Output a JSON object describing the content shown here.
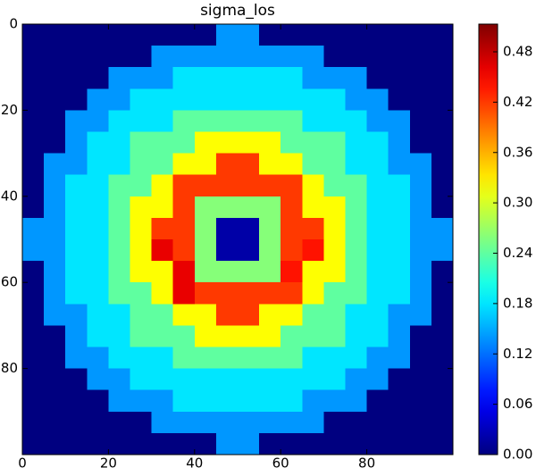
{
  "chart_data": {
    "type": "heatmap",
    "title": "sigma_los",
    "xlim": [
      0,
      100
    ],
    "ylim": [
      100,
      0
    ],
    "xticks": [
      0,
      20,
      40,
      60,
      80
    ],
    "yticks": [
      0,
      20,
      40,
      60,
      80
    ],
    "clim": [
      0,
      0.513
    ],
    "cticks": [
      {
        "value": 0,
        "label": "0.00"
      },
      {
        "value": 0.06,
        "label": "0.06"
      },
      {
        "value": 0.12,
        "label": "0.12"
      },
      {
        "value": 0.18,
        "label": "0.18"
      },
      {
        "value": 0.24,
        "label": "0.24"
      },
      {
        "value": 0.3,
        "label": "0.30"
      },
      {
        "value": 0.36,
        "label": "0.36"
      },
      {
        "value": 0.42,
        "label": "0.42"
      },
      {
        "value": 0.48,
        "label": "0.48"
      }
    ],
    "colormap": "jet",
    "z": [
      [
        0,
        0,
        0,
        0,
        0,
        0,
        0,
        0,
        0,
        0.14,
        0.14,
        0,
        0,
        0,
        0,
        0,
        0,
        0,
        0,
        0
      ],
      [
        0,
        0,
        0,
        0,
        0,
        0,
        0.14,
        0.14,
        0.14,
        0.14,
        0.14,
        0.14,
        0.14,
        0.14,
        0,
        0,
        0,
        0,
        0,
        0
      ],
      [
        0,
        0,
        0,
        0,
        0.14,
        0.14,
        0.14,
        0.18,
        0.18,
        0.18,
        0.18,
        0.18,
        0.18,
        0.14,
        0.14,
        0.14,
        0,
        0,
        0,
        0
      ],
      [
        0,
        0,
        0,
        0.14,
        0.14,
        0.18,
        0.18,
        0.18,
        0.18,
        0.18,
        0.18,
        0.18,
        0.18,
        0.18,
        0.18,
        0.14,
        0.14,
        0,
        0,
        0
      ],
      [
        0,
        0,
        0.14,
        0.14,
        0.18,
        0.18,
        0.18,
        0.24,
        0.24,
        0.24,
        0.24,
        0.24,
        0.24,
        0.18,
        0.18,
        0.18,
        0.14,
        0.14,
        0,
        0
      ],
      [
        0,
        0,
        0.14,
        0.18,
        0.18,
        0.24,
        0.24,
        0.24,
        0.32,
        0.32,
        0.32,
        0.32,
        0.24,
        0.24,
        0.24,
        0.18,
        0.18,
        0.14,
        0,
        0
      ],
      [
        0,
        0.14,
        0.14,
        0.18,
        0.18,
        0.24,
        0.24,
        0.32,
        0.32,
        0.42,
        0.42,
        0.32,
        0.32,
        0.24,
        0.24,
        0.18,
        0.18,
        0.14,
        0.14,
        0
      ],
      [
        0,
        0.14,
        0.18,
        0.18,
        0.24,
        0.24,
        0.32,
        0.42,
        0.42,
        0.42,
        0.42,
        0.42,
        0.42,
        0.32,
        0.24,
        0.24,
        0.18,
        0.18,
        0.14,
        0
      ],
      [
        0,
        0.14,
        0.18,
        0.18,
        0.24,
        0.32,
        0.32,
        0.42,
        0.26,
        0.26,
        0.26,
        0.26,
        0.42,
        0.32,
        0.32,
        0.24,
        0.18,
        0.18,
        0.14,
        0
      ],
      [
        0.14,
        0.14,
        0.18,
        0.18,
        0.24,
        0.32,
        0.42,
        0.42,
        0.26,
        0.02,
        0.02,
        0.26,
        0.42,
        0.42,
        0.32,
        0.24,
        0.18,
        0.18,
        0.14,
        0.14
      ],
      [
        0.14,
        0.14,
        0.18,
        0.18,
        0.24,
        0.32,
        0.46,
        0.42,
        0.26,
        0.02,
        0.02,
        0.26,
        0.42,
        0.44,
        0.32,
        0.24,
        0.18,
        0.18,
        0.14,
        0.14
      ],
      [
        0,
        0.14,
        0.18,
        0.18,
        0.24,
        0.32,
        0.32,
        0.46,
        0.26,
        0.26,
        0.26,
        0.26,
        0.44,
        0.32,
        0.32,
        0.24,
        0.18,
        0.18,
        0.14,
        0
      ],
      [
        0,
        0.14,
        0.18,
        0.18,
        0.24,
        0.24,
        0.32,
        0.46,
        0.42,
        0.42,
        0.42,
        0.42,
        0.42,
        0.32,
        0.24,
        0.24,
        0.18,
        0.18,
        0.14,
        0
      ],
      [
        0,
        0.14,
        0.14,
        0.18,
        0.18,
        0.24,
        0.24,
        0.32,
        0.32,
        0.42,
        0.42,
        0.32,
        0.32,
        0.24,
        0.24,
        0.18,
        0.18,
        0.14,
        0.14,
        0
      ],
      [
        0,
        0,
        0.14,
        0.18,
        0.18,
        0.24,
        0.24,
        0.24,
        0.32,
        0.32,
        0.32,
        0.32,
        0.24,
        0.24,
        0.24,
        0.18,
        0.18,
        0.14,
        0,
        0
      ],
      [
        0,
        0,
        0.14,
        0.14,
        0.18,
        0.18,
        0.18,
        0.24,
        0.24,
        0.24,
        0.24,
        0.24,
        0.24,
        0.18,
        0.18,
        0.18,
        0.14,
        0.14,
        0,
        0
      ],
      [
        0,
        0,
        0,
        0.14,
        0.14,
        0.18,
        0.18,
        0.18,
        0.18,
        0.18,
        0.18,
        0.18,
        0.18,
        0.18,
        0.18,
        0.14,
        0.14,
        0,
        0,
        0
      ],
      [
        0,
        0,
        0,
        0,
        0.14,
        0.14,
        0.14,
        0.18,
        0.18,
        0.18,
        0.18,
        0.18,
        0.18,
        0.14,
        0.14,
        0.14,
        0,
        0,
        0,
        0
      ],
      [
        0,
        0,
        0,
        0,
        0,
        0,
        0.14,
        0.14,
        0.14,
        0.14,
        0.14,
        0.14,
        0.14,
        0.14,
        0,
        0,
        0,
        0,
        0,
        0
      ],
      [
        0,
        0,
        0,
        0,
        0,
        0,
        0,
        0,
        0,
        0.14,
        0.14,
        0,
        0,
        0,
        0,
        0,
        0,
        0,
        0,
        0
      ]
    ]
  }
}
